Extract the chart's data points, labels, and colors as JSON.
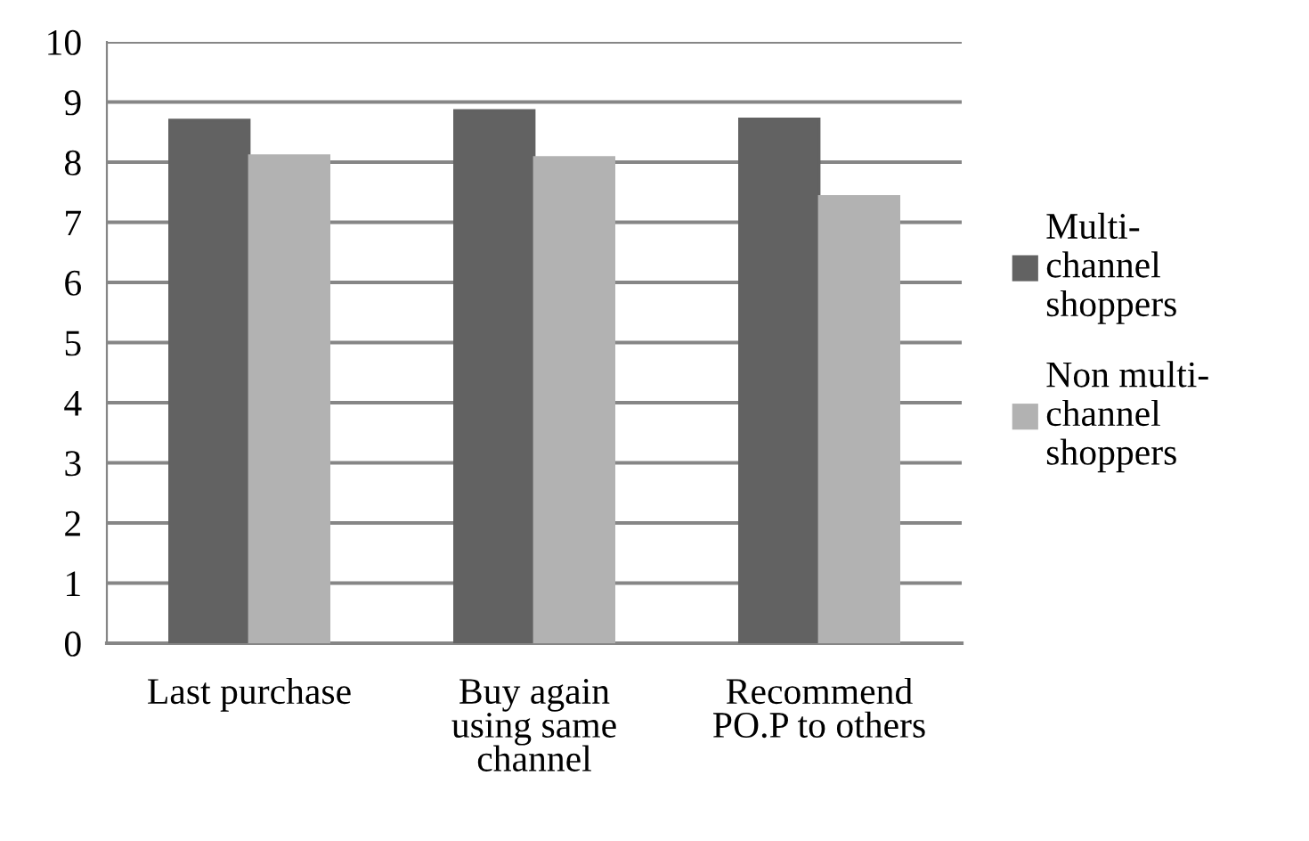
{
  "chart_data": {
    "type": "bar",
    "categories": [
      "Last purchase",
      "Buy again\nusing same\nchannel",
      "Recommend\nPO.P to others"
    ],
    "series": [
      {
        "name": "Multi-\nchannel\nshoppers",
        "color": "#626262",
        "values": [
          8.7,
          8.86,
          8.72
        ]
      },
      {
        "name": "Non multi-\nchannel\nshoppers",
        "color": "#b2b2b2",
        "values": [
          8.11,
          8.08,
          7.43
        ]
      }
    ],
    "ylim": [
      0,
      10
    ],
    "yticks": [
      0,
      1,
      2,
      3,
      4,
      5,
      6,
      7,
      8,
      9,
      10
    ],
    "grid": "y",
    "legend": "right"
  }
}
